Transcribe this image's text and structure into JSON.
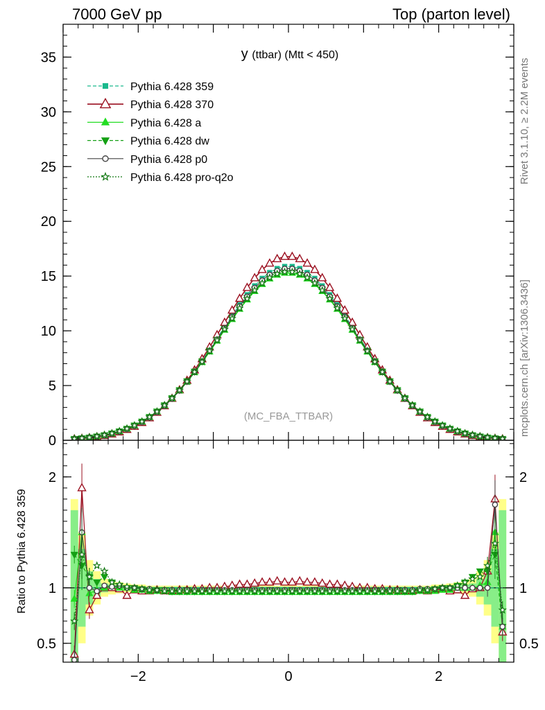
{
  "header": {
    "left": "7000 GeV pp",
    "right": "Top (parton level)"
  },
  "side_labels": {
    "rivet": "Rivet 3.1.10, ≥ 2.2M events",
    "mcplots": "mcplots.cern.ch [arXiv:1306.3436]"
  },
  "chart_data": {
    "type": "line",
    "title_main": "y",
    "title_sub": "(ttbar) (Mtt < 450)",
    "watermark": "(MC_FBA_TTBAR)",
    "xlim": [
      -3.0,
      3.0
    ],
    "ylim": [
      0,
      38
    ],
    "x_ticks": [
      {
        "value": -2,
        "label": "−2"
      },
      {
        "value": 0,
        "label": "0"
      },
      {
        "value": 2,
        "label": "2"
      }
    ],
    "y_ticks": [
      {
        "value": 0,
        "label": "0"
      },
      {
        "value": 5,
        "label": "5"
      },
      {
        "value": 10,
        "label": "10"
      },
      {
        "value": 15,
        "label": "15"
      },
      {
        "value": 20,
        "label": "20"
      },
      {
        "value": 25,
        "label": "25"
      },
      {
        "value": 30,
        "label": "30"
      },
      {
        "value": 35,
        "label": "35"
      }
    ],
    "bins": {
      "start": -2.9,
      "width": 0.1,
      "count": 58
    },
    "peak_values": [
      {
        "name": "Pythia 6.428 359",
        "peak": 15.9,
        "sigma": 0.92
      },
      {
        "name": "Pythia 6.428 370",
        "peak": 16.8,
        "sigma": 0.9
      },
      {
        "name": "Pythia 6.428 a",
        "peak": 15.3,
        "sigma": 0.93
      },
      {
        "name": "Pythia 6.428 dw",
        "peak": 15.5,
        "sigma": 0.93
      },
      {
        "name": "Pythia 6.428 p0",
        "peak": 15.7,
        "sigma": 0.92
      },
      {
        "name": "Pythia 6.428 pro-q2o",
        "peak": 15.4,
        "sigma": 0.93
      }
    ],
    "series": [
      {
        "name": "Pythia 6.428 359",
        "color": "#19b98d",
        "dash": "5,3",
        "marker": "square",
        "filled": true
      },
      {
        "name": "Pythia 6.428 370",
        "color": "#9b1020",
        "dash": "",
        "marker": "triangle",
        "filled": false
      },
      {
        "name": "Pythia 6.428 a",
        "color": "#22dd22",
        "dash": "",
        "marker": "triangle",
        "filled": true
      },
      {
        "name": "Pythia 6.428 dw",
        "color": "#14a014",
        "dash": "5,3",
        "marker": "triangle-down",
        "filled": true
      },
      {
        "name": "Pythia 6.428 p0",
        "color": "#444444",
        "dash": "",
        "marker": "circle",
        "filled": false
      },
      {
        "name": "Pythia 6.428 pro-q2o",
        "color": "#117711",
        "dash": "2,2",
        "marker": "star",
        "filled": false
      }
    ],
    "ratio": {
      "ylabel": "Ratio to Pythia 6.428 359",
      "ylim": [
        0.33,
        2.33
      ],
      "y_ticks": [
        {
          "value": 0.5,
          "label": "0.5"
        },
        {
          "value": 1,
          "label": "1"
        },
        {
          "value": 2,
          "label": "2"
        }
      ],
      "values": {
        "Pythia 6.428 370": [
          0.4,
          1.9,
          0.8,
          0.93,
          1.0,
          1.0,
          0.99,
          0.93,
          0.98,
          0.97,
          0.97,
          0.98,
          0.97,
          0.97,
          0.98,
          0.98,
          0.99,
          0.99,
          1.0,
          1.0,
          1.01,
          1.02,
          1.03,
          1.03,
          1.04,
          1.05,
          1.05,
          1.06,
          1.05,
          1.05,
          1.06,
          1.05,
          1.05,
          1.04,
          1.03,
          1.03,
          1.02,
          1.01,
          1.0,
          1.0,
          0.99,
          0.99,
          0.98,
          0.98,
          0.97,
          0.97,
          0.98,
          0.97,
          0.98,
          0.99,
          0.97,
          0.98,
          0.93,
          0.99,
          1.0,
          1.15,
          1.8,
          0.6
        ],
        "Pythia 6.428 a": [
          0.9,
          1.5,
          0.95,
          0.98,
          1.0,
          1.02,
          1.0,
          1.0,
          0.98,
          0.98,
          0.97,
          0.97,
          0.97,
          0.96,
          0.96,
          0.96,
          0.96,
          0.96,
          0.96,
          0.96,
          0.96,
          0.96,
          0.96,
          0.96,
          0.96,
          0.96,
          0.96,
          0.96,
          0.96,
          0.96,
          0.96,
          0.96,
          0.96,
          0.96,
          0.96,
          0.96,
          0.96,
          0.96,
          0.96,
          0.96,
          0.96,
          0.96,
          0.96,
          0.96,
          0.96,
          0.96,
          0.97,
          0.97,
          0.97,
          0.98,
          0.98,
          1.0,
          1.0,
          1.0,
          1.02,
          1.05,
          1.5,
          0.65
        ],
        "Pythia 6.428 dw": [
          1.3,
          1.2,
          1.1,
          1.05,
          1.1,
          1.05,
          1.02,
          1.0,
          1.0,
          0.99,
          0.98,
          0.98,
          0.98,
          0.97,
          0.97,
          0.97,
          0.97,
          0.97,
          0.97,
          0.97,
          0.97,
          0.97,
          0.97,
          0.97,
          0.97,
          0.97,
          0.97,
          0.97,
          0.97,
          0.97,
          0.97,
          0.97,
          0.97,
          0.97,
          0.97,
          0.97,
          0.97,
          0.97,
          0.97,
          0.97,
          0.97,
          0.97,
          0.97,
          0.97,
          0.97,
          0.97,
          0.98,
          0.98,
          0.99,
          1.0,
          1.0,
          1.02,
          1.05,
          1.1,
          1.15,
          1.15,
          1.3,
          0.65
        ],
        "Pythia 6.428 p0": [
          0.35,
          1.5,
          1.0,
          0.97,
          1.02,
          1.01,
          1.02,
          1.0,
          1.0,
          0.99,
          0.99,
          0.98,
          0.98,
          0.98,
          0.98,
          0.98,
          0.98,
          0.98,
          0.98,
          0.98,
          0.98,
          0.98,
          0.98,
          0.98,
          0.98,
          0.98,
          0.98,
          0.98,
          0.98,
          0.98,
          0.98,
          0.98,
          0.98,
          0.98,
          0.98,
          0.98,
          0.98,
          0.98,
          0.98,
          0.98,
          0.98,
          0.98,
          0.98,
          0.98,
          0.98,
          0.98,
          0.99,
          0.99,
          0.99,
          1.0,
          1.0,
          1.0,
          1.0,
          1.0,
          1.0,
          1.0,
          1.75,
          0.65
        ],
        "Pythia 6.428 pro-q2o": [
          0.7,
          1.3,
          1.1,
          1.2,
          1.15,
          1.05,
          1.03,
          1.01,
          1.0,
          0.99,
          0.98,
          0.98,
          0.97,
          0.97,
          0.97,
          0.97,
          0.97,
          0.97,
          0.97,
          0.97,
          0.97,
          0.97,
          0.97,
          0.97,
          0.97,
          0.97,
          0.97,
          0.97,
          0.97,
          0.97,
          0.97,
          0.97,
          0.97,
          0.97,
          0.97,
          0.97,
          0.97,
          0.97,
          0.97,
          0.97,
          0.97,
          0.97,
          0.97,
          0.97,
          0.97,
          0.97,
          0.98,
          0.98,
          0.99,
          1.0,
          1.0,
          1.02,
          1.05,
          1.08,
          1.1,
          1.2,
          1.4,
          0.8
        ]
      },
      "band_yellow_halfwidth": [
        0.8,
        0.5,
        0.25,
        0.15,
        0.08,
        0.06,
        0.05,
        0.04,
        0.03,
        0.03,
        0.02,
        0.02,
        0.02,
        0.02,
        0.02,
        0.02,
        0.02,
        0.02,
        0.02,
        0.02,
        0.02,
        0.02,
        0.02,
        0.02,
        0.02,
        0.02,
        0.02,
        0.02,
        0.02,
        0.02,
        0.02,
        0.02,
        0.02,
        0.02,
        0.02,
        0.02,
        0.02,
        0.02,
        0.02,
        0.02,
        0.02,
        0.02,
        0.02,
        0.02,
        0.02,
        0.02,
        0.02,
        0.02,
        0.03,
        0.03,
        0.04,
        0.05,
        0.06,
        0.08,
        0.15,
        0.25,
        0.5,
        0.8
      ],
      "band_green_halfwidth": [
        0.7,
        0.35,
        0.15,
        0.08,
        0.04,
        0.03,
        0.025,
        0.02,
        0.015,
        0.015,
        0.01,
        0.01,
        0.01,
        0.01,
        0.01,
        0.01,
        0.01,
        0.01,
        0.01,
        0.01,
        0.01,
        0.01,
        0.01,
        0.01,
        0.01,
        0.01,
        0.01,
        0.01,
        0.01,
        0.01,
        0.01,
        0.01,
        0.01,
        0.01,
        0.01,
        0.01,
        0.01,
        0.01,
        0.01,
        0.01,
        0.01,
        0.01,
        0.01,
        0.01,
        0.01,
        0.01,
        0.01,
        0.01,
        0.015,
        0.015,
        0.02,
        0.025,
        0.03,
        0.04,
        0.08,
        0.15,
        0.35,
        0.7
      ]
    }
  }
}
